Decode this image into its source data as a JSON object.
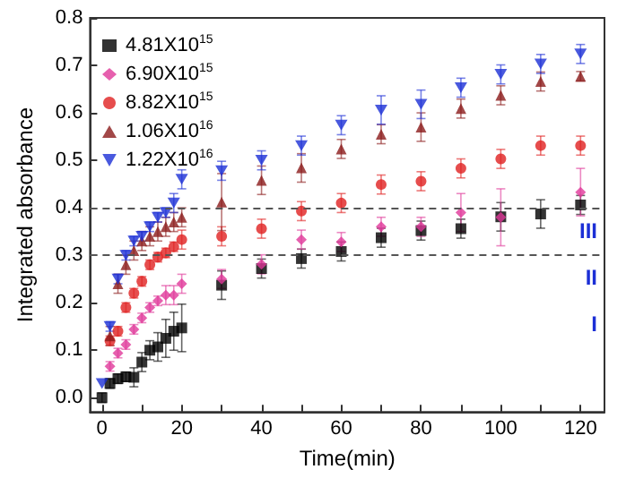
{
  "chart_data": {
    "type": "scatter",
    "xlabel": "Time(min)",
    "ylabel": "Integrated absorbance",
    "xlim": [
      -3,
      126
    ],
    "ylim": [
      -0.03,
      0.8
    ],
    "xticks": [
      0,
      {
        "value": 10,
        "label": null
      },
      20,
      {
        "value": 30,
        "label": null
      },
      40,
      {
        "value": 50,
        "label": null
      },
      60,
      {
        "value": 70,
        "label": null
      },
      80,
      {
        "value": 90,
        "label": null
      },
      100,
      {
        "value": 110,
        "label": null
      },
      120
    ],
    "yticks": [
      {
        "value": 0,
        "label": "0.0"
      },
      {
        "value": 0.1,
        "label": "0.1"
      },
      {
        "value": 0.2,
        "label": "0.2"
      },
      {
        "value": 0.3,
        "label": "0.3"
      },
      {
        "value": 0.4,
        "label": "0.4"
      },
      {
        "value": 0.5,
        "label": "0.5"
      },
      {
        "value": 0.6,
        "label": "0.6"
      },
      {
        "value": 0.7,
        "label": "0.7"
      },
      {
        "value": 0.8,
        "label": "0.8"
      }
    ],
    "x": [
      0,
      2,
      4,
      6,
      8,
      10,
      12,
      14,
      16,
      18,
      20,
      30,
      40,
      50,
      60,
      70,
      80,
      90,
      100,
      110,
      120
    ],
    "legend": "top left",
    "grid": false,
    "series": [
      {
        "name": "4.81X10$^{15}$",
        "color": "#000000",
        "marker": "square",
        "values": [
          0.0,
          0.03,
          0.04,
          0.044,
          0.043,
          0.075,
          0.1,
          0.107,
          0.125,
          0.14,
          0.147,
          0.237,
          0.272,
          0.293,
          0.308,
          0.337,
          0.352,
          0.356,
          0.381,
          0.387,
          0.406
        ],
        "errors": [
          0.01,
          0.01,
          0.01,
          0.01,
          0.02,
          0.02,
          0.02,
          0.03,
          0.04,
          0.04,
          0.05,
          0.03,
          0.02,
          0.02,
          0.02,
          0.02,
          0.02,
          0.02,
          0.03,
          0.03,
          0.02
        ]
      },
      {
        "name": "6.90X10$^{15}$",
        "color": "#e0389a",
        "marker": "diamond",
        "values": [
          null,
          0.066,
          0.094,
          0.112,
          0.144,
          0.168,
          0.19,
          0.204,
          0.216,
          0.216,
          0.24,
          0.25,
          0.281,
          0.333,
          0.328,
          0.36,
          0.36,
          0.39,
          0.38,
          null,
          0.433
        ],
        "errors": [
          null,
          0.01,
          0.01,
          0.01,
          0.01,
          0.01,
          0.01,
          0.01,
          0.02,
          0.02,
          0.02,
          0.02,
          0.02,
          0.02,
          0.02,
          0.02,
          0.02,
          0.04,
          0.06,
          null,
          0.05
        ]
      },
      {
        "name": "8.82X10$^{15}$",
        "color": "#e02020",
        "marker": "circle",
        "values": [
          null,
          0.12,
          0.14,
          0.19,
          0.22,
          0.245,
          0.28,
          0.296,
          0.305,
          0.318,
          0.333,
          0.34,
          0.356,
          0.393,
          0.41,
          0.449,
          0.456,
          0.483,
          0.503,
          0.531,
          0.531
        ],
        "errors": [
          null,
          0.01,
          0.01,
          0.01,
          0.01,
          0.01,
          0.01,
          0.01,
          0.01,
          0.01,
          0.02,
          0.02,
          0.02,
          0.02,
          0.02,
          0.02,
          0.02,
          0.02,
          0.02,
          0.02,
          0.02
        ]
      },
      {
        "name": "1.06X10$^{16}$",
        "color": "#8b1a1a",
        "marker": "triangle",
        "values": [
          null,
          0.13,
          0.24,
          0.28,
          0.31,
          0.33,
          0.34,
          0.35,
          0.36,
          0.37,
          0.38,
          0.412,
          0.458,
          0.484,
          0.524,
          0.555,
          0.57,
          0.609,
          0.637,
          0.666,
          0.677
        ],
        "errors": [
          null,
          0.02,
          0.02,
          0.02,
          0.02,
          0.02,
          0.02,
          0.02,
          0.02,
          0.02,
          0.02,
          0.06,
          0.03,
          0.03,
          0.02,
          0.02,
          0.03,
          0.02,
          0.02,
          0.02,
          0.01
        ]
      },
      {
        "name": "1.22X10$^{16}$",
        "color": "#1c2fd6",
        "marker": "triangle-down",
        "values": [
          0.03,
          0.15,
          0.25,
          0.3,
          0.33,
          0.34,
          0.36,
          0.38,
          0.39,
          0.41,
          0.46,
          0.478,
          0.5,
          0.531,
          0.574,
          0.606,
          0.618,
          0.653,
          0.681,
          0.703,
          0.724
        ],
        "errors": [
          null,
          0.01,
          0.01,
          0.01,
          0.01,
          0.01,
          0.01,
          0.01,
          0.01,
          0.02,
          0.02,
          0.02,
          0.02,
          0.02,
          0.02,
          0.03,
          0.03,
          0.02,
          0.02,
          0.02,
          0.02
        ]
      }
    ],
    "ref_lines": [
      {
        "axis": "y",
        "value": 0.4,
        "color": "#555555",
        "line_style": "dashed"
      },
      {
        "axis": "y",
        "value": 0.3,
        "color": "#555555",
        "line_style": "dashed"
      }
    ],
    "annotations": [
      "III",
      "II",
      "I"
    ]
  }
}
